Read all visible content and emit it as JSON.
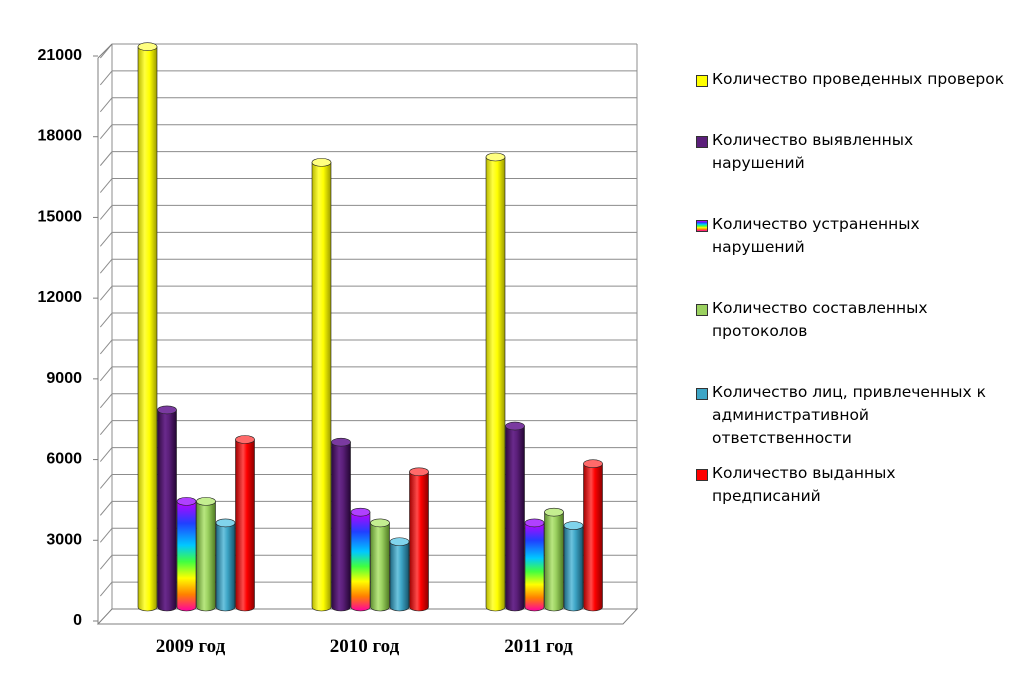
{
  "chart_data": {
    "type": "bar",
    "categories": [
      "2009 год",
      "2010 год",
      "2011 год"
    ],
    "series": [
      {
        "name": "Количество проведенных проверок",
        "values": [
          20900,
          16600,
          16800
        ],
        "color": "#ffff00"
      },
      {
        "name": "Количество выявленных нарушений",
        "values": [
          7400,
          6200,
          6800
        ],
        "color": "#5b1f7a"
      },
      {
        "name": "Количество устраненных нарушений",
        "values": [
          4000,
          3600,
          3200
        ],
        "color": "rainbow"
      },
      {
        "name": "Количество составленных протоколов",
        "values": [
          4000,
          3200,
          3600
        ],
        "color": "#9bd160"
      },
      {
        "name": "Количество лиц, привлеченных к административной ответственности",
        "values": [
          3200,
          2500,
          3100
        ],
        "color": "#3da5c6"
      },
      {
        "name": "Количество выданных предписаний",
        "values": [
          6300,
          5100,
          5400
        ],
        "color": "#ff0000"
      }
    ],
    "yticks": [
      0,
      3000,
      6000,
      9000,
      12000,
      15000,
      18000,
      21000
    ],
    "ylim": [
      0,
      21000
    ],
    "grid": true,
    "legend": "right"
  }
}
